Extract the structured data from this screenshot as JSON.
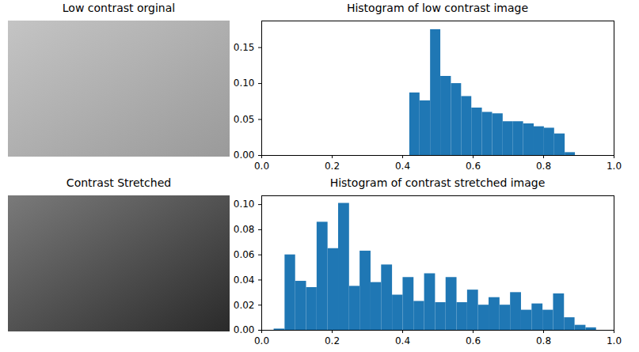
{
  "images": [
    {
      "title": "Low contrast orginal"
    },
    {
      "title": "Contrast Stretched"
    }
  ],
  "chart_data": [
    {
      "type": "histogram",
      "title": "Histogram of low contrast image",
      "bins": [
        0.42,
        0.449,
        0.479,
        0.508,
        0.538,
        0.567,
        0.596,
        0.626,
        0.655,
        0.685,
        0.714,
        0.743,
        0.773,
        0.802,
        0.831,
        0.861,
        0.89
      ],
      "values": [
        0.087,
        0.076,
        0.175,
        0.11,
        0.1,
        0.082,
        0.066,
        0.06,
        0.058,
        0.047,
        0.047,
        0.044,
        0.04,
        0.038,
        0.03,
        0.004
      ],
      "color": "#1f77b4",
      "xlim": [
        0,
        1
      ],
      "xticks": [
        {
          "value": 0,
          "label": "0.0"
        },
        {
          "value": 0.2,
          "label": "0.2"
        },
        {
          "value": 0.4,
          "label": "0.4"
        },
        {
          "value": 0.6,
          "label": "0.6"
        },
        {
          "value": 0.8,
          "label": "0.8"
        },
        {
          "value": 1,
          "label": "1.0"
        }
      ],
      "ylim": [
        0,
        0.187
      ],
      "yticks": [
        {
          "value": 0,
          "label": "0.00"
        },
        {
          "value": 0.05,
          "label": "0.05"
        },
        {
          "value": 0.1,
          "label": "0.10"
        },
        {
          "value": 0.15,
          "label": "0.15"
        }
      ]
    },
    {
      "type": "histogram",
      "title": "Histogram of contrast stretched image",
      "bins": [
        0.035,
        0.066,
        0.096,
        0.127,
        0.157,
        0.188,
        0.218,
        0.249,
        0.279,
        0.31,
        0.34,
        0.371,
        0.401,
        0.432,
        0.462,
        0.493,
        0.523,
        0.554,
        0.584,
        0.615,
        0.645,
        0.676,
        0.706,
        0.737,
        0.767,
        0.798,
        0.828,
        0.859,
        0.889,
        0.92,
        0.95
      ],
      "values": [
        0.001,
        0.06,
        0.039,
        0.034,
        0.086,
        0.065,
        0.101,
        0.035,
        0.063,
        0.038,
        0.052,
        0.028,
        0.042,
        0.023,
        0.045,
        0.022,
        0.042,
        0.022,
        0.032,
        0.02,
        0.026,
        0.02,
        0.03,
        0.016,
        0.021,
        0.016,
        0.029,
        0.01,
        0.004,
        0.002
      ],
      "color": "#1f77b4",
      "xlim": [
        0,
        1
      ],
      "xticks": [
        {
          "value": 0,
          "label": "0.0"
        },
        {
          "value": 0.2,
          "label": "0.2"
        },
        {
          "value": 0.4,
          "label": "0.4"
        },
        {
          "value": 0.6,
          "label": "0.6"
        },
        {
          "value": 0.8,
          "label": "0.8"
        },
        {
          "value": 1,
          "label": "1.0"
        }
      ],
      "ylim": [
        0,
        0.107
      ],
      "yticks": [
        {
          "value": 0,
          "label": "0.00"
        },
        {
          "value": 0.02,
          "label": "0.02"
        },
        {
          "value": 0.04,
          "label": "0.04"
        },
        {
          "value": 0.06,
          "label": "0.06"
        },
        {
          "value": 0.08,
          "label": "0.08"
        },
        {
          "value": 0.1,
          "label": "0.10"
        }
      ]
    }
  ]
}
